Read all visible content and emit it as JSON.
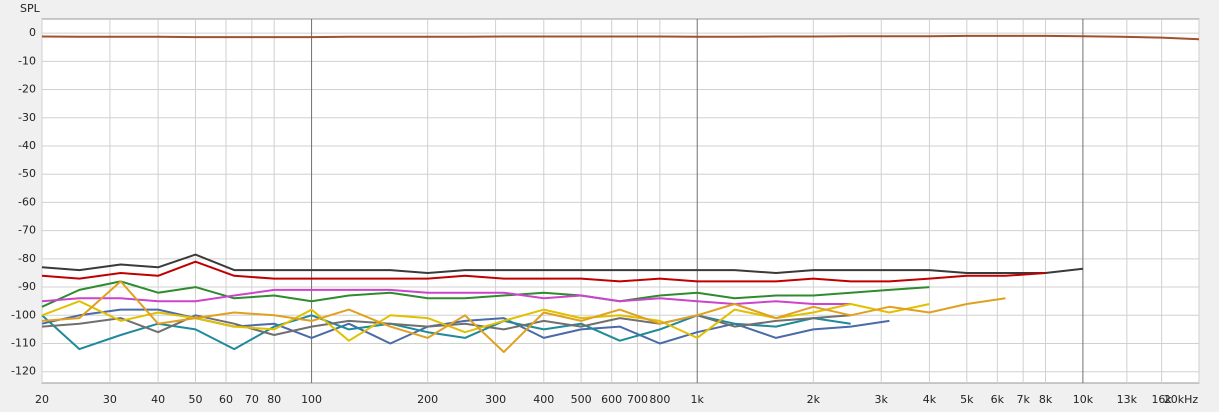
{
  "chart_data": {
    "type": "line",
    "y_label": "SPL",
    "xscale": "log",
    "grid": true,
    "xlim": [
      20,
      20000
    ],
    "ylim": [
      -124,
      5
    ],
    "xticks": [
      20,
      30,
      40,
      50,
      60,
      70,
      80,
      100,
      200,
      300,
      400,
      500,
      600,
      700,
      800,
      {
        "value": 1000,
        "label": "1k"
      },
      {
        "value": 2000,
        "label": "2k"
      },
      {
        "value": 3000,
        "label": "3k"
      },
      {
        "value": 4000,
        "label": "4k"
      },
      {
        "value": 5000,
        "label": "5k"
      },
      {
        "value": 6000,
        "label": "6k"
      },
      {
        "value": 7000,
        "label": "7k"
      },
      {
        "value": 8000,
        "label": "8k"
      },
      {
        "value": 10000,
        "label": "10k"
      },
      {
        "value": 13000,
        "label": "13k"
      },
      {
        "value": 16000,
        "label": "16k"
      },
      {
        "value": 20000,
        "label": "20kHz"
      }
    ],
    "yticks": [
      0,
      -10,
      -20,
      -30,
      -40,
      -50,
      -60,
      -70,
      -80,
      -90,
      -100,
      -110,
      -120
    ],
    "x": [
      20,
      25,
      32,
      40,
      50,
      63,
      80,
      100,
      125,
      160,
      200,
      250,
      315,
      400,
      500,
      630,
      800,
      1000,
      1250,
      1600,
      2000,
      2500,
      3150,
      4000,
      5000,
      6300,
      8000,
      10000,
      12500,
      16000,
      20000
    ],
    "series": [
      {
        "color": "#a0522d",
        "values": [
          -1.2,
          -1.3,
          -1.3,
          -1.3,
          -1.4,
          -1.4,
          -1.4,
          -1.4,
          -1.3,
          -1.3,
          -1.3,
          -1.3,
          -1.2,
          -1.2,
          -1.2,
          -1.2,
          -1.2,
          -1.3,
          -1.3,
          -1.2,
          -1.2,
          -1.1,
          -1.1,
          -1.1,
          -1.0,
          -1.0,
          -1.0,
          -1.1,
          -1.3,
          -1.6,
          -2.2
        ]
      },
      {
        "color": "#3a3a3a",
        "values": [
          -83,
          -84,
          -82,
          -83,
          -78.5,
          -84,
          -84,
          -84,
          -84,
          -84,
          -85,
          -84,
          -84,
          -84,
          -84,
          -84,
          -84,
          -84,
          -84,
          -85,
          -84,
          -84,
          -84,
          -84,
          -85,
          -85,
          -85,
          -83.5,
          null,
          null,
          null
        ]
      },
      {
        "color": "#c00000",
        "values": [
          -86,
          -87,
          -85,
          -86,
          -81,
          -86,
          -87,
          -87,
          -87,
          -87,
          -87,
          -86,
          -87,
          -87,
          -87,
          -88,
          -87,
          -88,
          -88,
          -88,
          -87,
          -88,
          -88,
          -87,
          -86,
          -86,
          -85,
          null,
          null,
          null,
          null
        ]
      },
      {
        "color": "#2e8b2e",
        "values": [
          -97,
          -91,
          -88,
          -92,
          -90,
          -94,
          -93,
          -95,
          -93,
          -92,
          -94,
          -94,
          -93,
          -92,
          -93,
          -95,
          -93,
          -92,
          -94,
          -93,
          -93,
          -92,
          -91,
          -90,
          null,
          null,
          null,
          null,
          null,
          null,
          null
        ]
      },
      {
        "color": "#cc44cc",
        "values": [
          -95,
          -94,
          -94,
          -95,
          -95,
          -93,
          -91,
          -91,
          -91,
          -91,
          -92,
          -92,
          -92,
          -94,
          -93,
          -95,
          -94,
          -95,
          -96,
          -95,
          -96,
          -96,
          null,
          null,
          null,
          null,
          null,
          null,
          null,
          null,
          null
        ]
      },
      {
        "color": "#4a6aa8",
        "values": [
          -103,
          -100,
          -98,
          -98,
          -101,
          -104,
          -103,
          -108,
          -103,
          -110,
          -104,
          -102,
          -101,
          -108,
          -105,
          -104,
          -110,
          -106,
          -103,
          -108,
          -105,
          -104,
          -102,
          null,
          null,
          null,
          null,
          null,
          null,
          null,
          null
        ]
      },
      {
        "color": "#1f8a9a",
        "values": [
          -100,
          -112,
          -107,
          -103,
          -105,
          -112,
          -104,
          -100,
          -105,
          -103,
          -106,
          -108,
          -102,
          -105,
          -103,
          -109,
          -105,
          -100,
          -103,
          -104,
          -101,
          -103,
          null,
          null,
          null,
          null,
          null,
          null,
          null,
          null,
          null
        ]
      },
      {
        "color": "#707070",
        "values": [
          -104,
          -103,
          -101,
          -106,
          -100,
          -103,
          -107,
          -104,
          -102,
          -103,
          -104,
          -103,
          -105,
          -102,
          -104,
          -101,
          -103,
          -100,
          -104,
          -102,
          -101,
          -100,
          null,
          null,
          null,
          null,
          null,
          null,
          null,
          null,
          null
        ]
      },
      {
        "color": "#e0c000",
        "values": [
          -100,
          -95,
          -102,
          -99,
          -101,
          -104,
          -105,
          -98,
          -109,
          -100,
          -101,
          -106,
          -102,
          -98,
          -101,
          -100,
          -102,
          -108,
          -98,
          -101,
          -99,
          -96,
          -99,
          -96,
          null,
          null,
          null,
          null,
          null,
          null,
          null
        ]
      },
      {
        "color": "#e0a020",
        "values": [
          -102,
          -101,
          -88,
          -103,
          -101,
          -99,
          -100,
          -102,
          -98,
          -104,
          -108,
          -100,
          -113,
          -99,
          -102,
          -98,
          -103,
          -100,
          -96,
          -101,
          -97,
          -100,
          -97,
          -99,
          -96,
          -94,
          null,
          null,
          null,
          null,
          null
        ]
      }
    ]
  }
}
